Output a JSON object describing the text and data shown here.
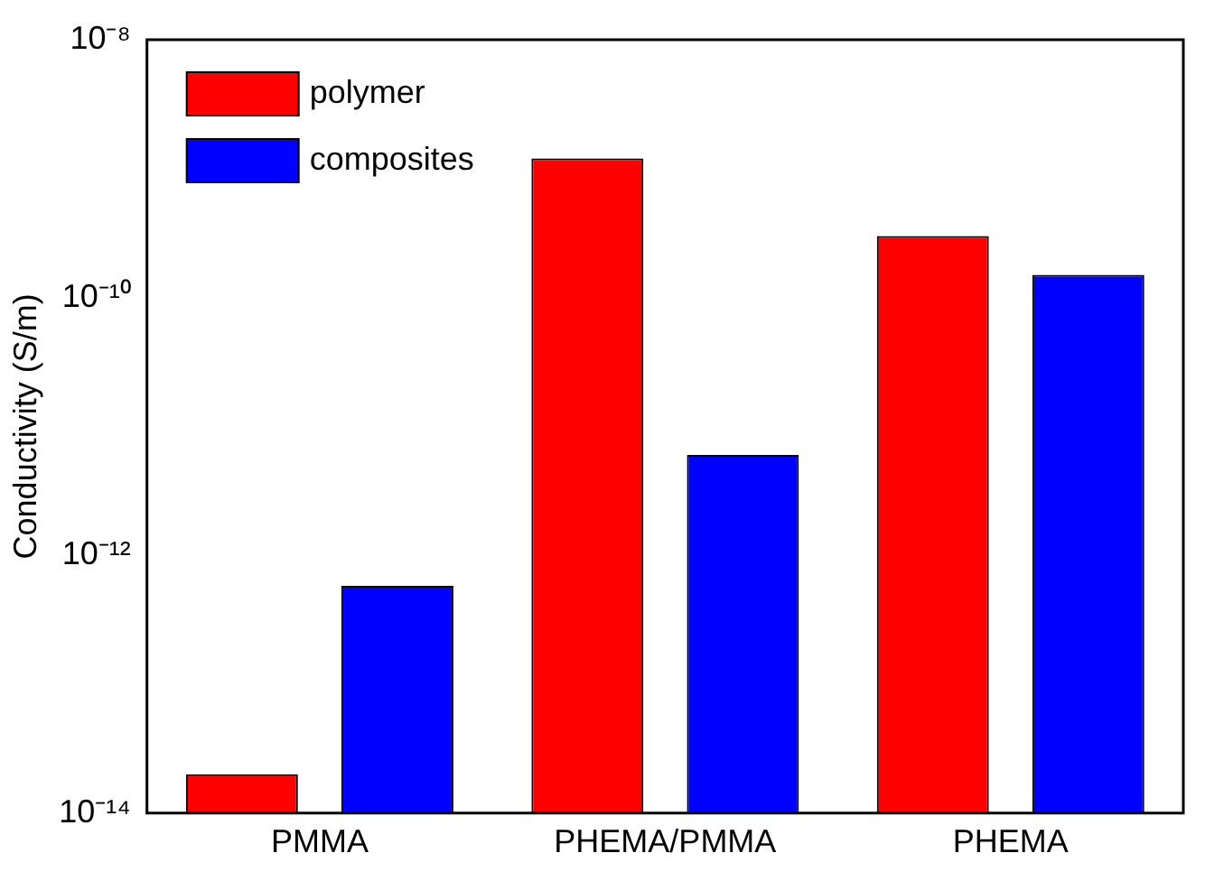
{
  "chart_data": {
    "type": "bar",
    "ylabel": "Conductivity (S/m)",
    "categories": [
      "PMMA",
      "PHEMA/PMMA",
      "PHEMA"
    ],
    "series": [
      {
        "name": "polymer",
        "color": "#ff0000",
        "values": [
          2e-14,
          1.2e-09,
          3e-10
        ]
      },
      {
        "name": "composites",
        "color": "#0000ff",
        "values": [
          5.8e-13,
          6e-12,
          1.5e-10
        ]
      }
    ],
    "log": true,
    "ylim": [
      1e-14,
      1e-08
    ],
    "yticks": [
      {
        "value": 1e-14,
        "label": "10⁻¹⁴"
      },
      {
        "value": 1e-12,
        "label": "10⁻¹²"
      },
      {
        "value": 1e-10,
        "label": "10⁻¹⁰"
      },
      {
        "value": 1e-08,
        "label": "10⁻⁸"
      }
    ],
    "grid": false,
    "legend": "top left"
  }
}
